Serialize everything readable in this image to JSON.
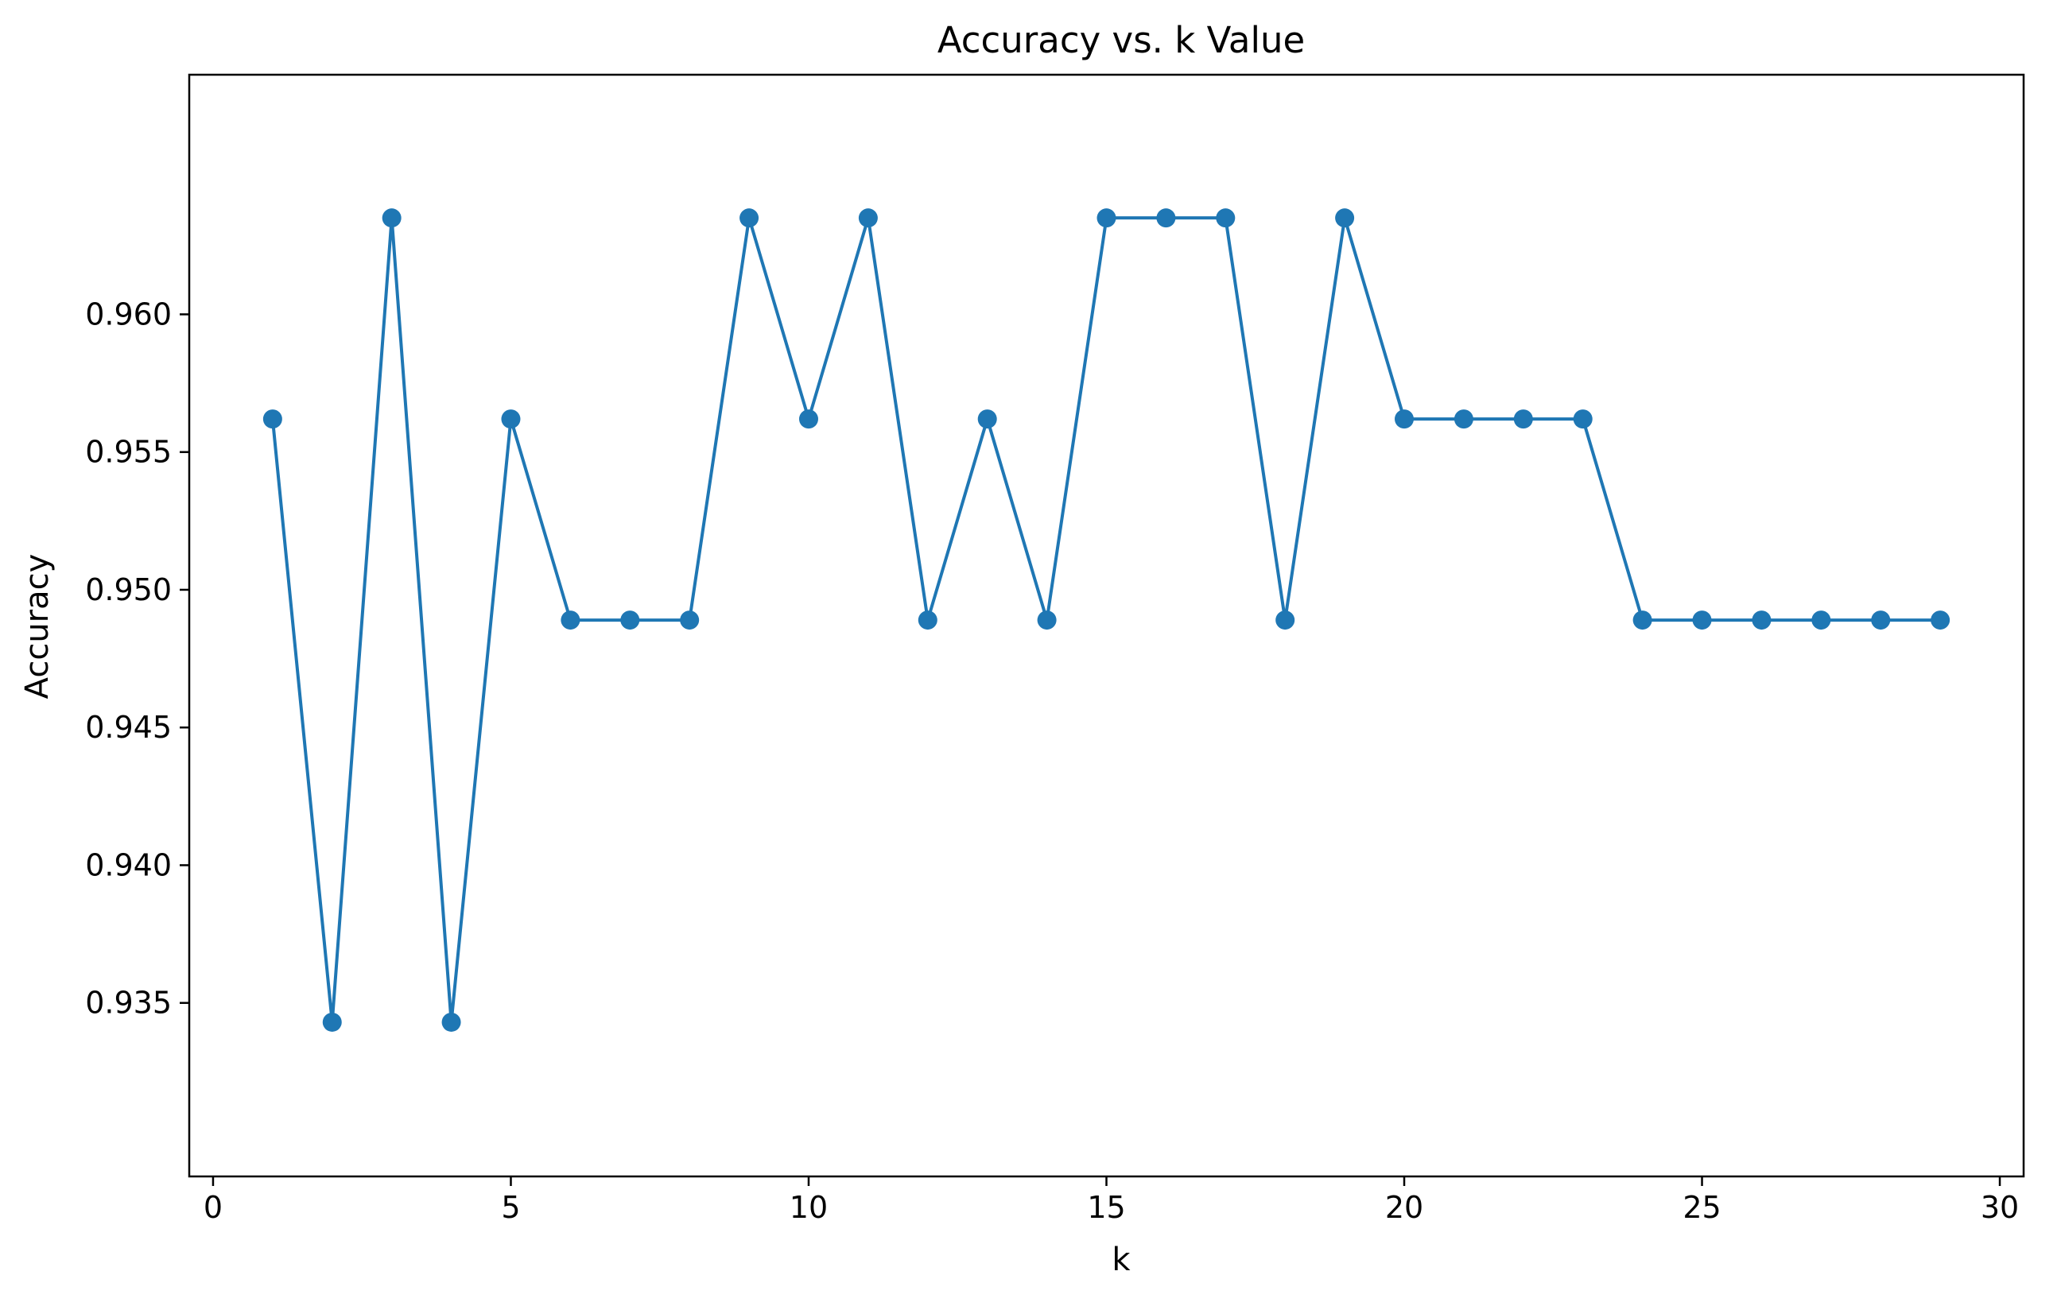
{
  "chart_data": {
    "type": "line",
    "title": "Accuracy vs. k Value",
    "xlabel": "k",
    "ylabel": "Accuracy",
    "xlim": [
      -0.4,
      30.4
    ],
    "ylim": [
      0.9287,
      0.9687
    ],
    "xticks": [
      0,
      5,
      10,
      15,
      20,
      25,
      30
    ],
    "xtick_labels": [
      "0",
      "5",
      "10",
      "15",
      "20",
      "25",
      "30"
    ],
    "yticks": [
      0.935,
      0.94,
      0.945,
      0.95,
      0.955,
      0.96
    ],
    "ytick_labels": [
      "0.935",
      "0.940",
      "0.945",
      "0.950",
      "0.955",
      "0.960"
    ],
    "grid": false,
    "legend": "none",
    "line_color": "#1f77b4",
    "marker": "circle",
    "series": [
      {
        "x": [
          1,
          2,
          3,
          4,
          5,
          6,
          7,
          8,
          9,
          10,
          11,
          12,
          13,
          14,
          15,
          16,
          17,
          18,
          19,
          20,
          21,
          22,
          23,
          24,
          25,
          26,
          27,
          28,
          29
        ],
        "values": [
          0.9562,
          0.9343,
          0.9635,
          0.9343,
          0.9562,
          0.9489,
          0.9489,
          0.9489,
          0.9635,
          0.9562,
          0.9635,
          0.9489,
          0.9562,
          0.9489,
          0.9635,
          0.9635,
          0.9635,
          0.9489,
          0.9635,
          0.9562,
          0.9562,
          0.9562,
          0.9562,
          0.9489,
          0.9489,
          0.9489,
          0.9489,
          0.9489,
          0.9489
        ]
      }
    ]
  }
}
